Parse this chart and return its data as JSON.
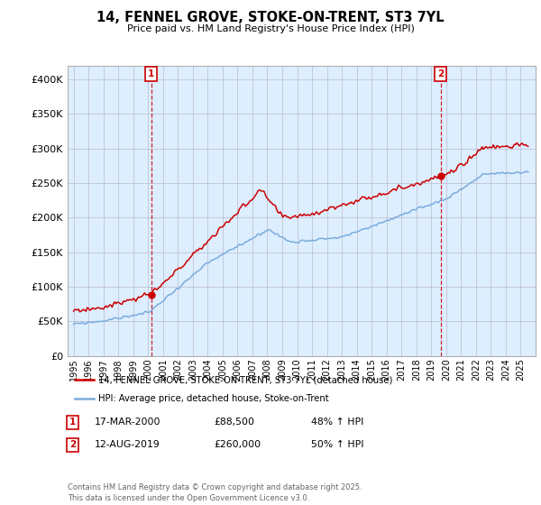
{
  "title": "14, FENNEL GROVE, STOKE-ON-TRENT, ST3 7YL",
  "subtitle": "Price paid vs. HM Land Registry's House Price Index (HPI)",
  "legend_label_red": "14, FENNEL GROVE, STOKE-ON-TRENT, ST3 7YL (detached house)",
  "legend_label_blue": "HPI: Average price, detached house, Stoke-on-Trent",
  "annotation1_date": "17-MAR-2000",
  "annotation1_price": "£88,500",
  "annotation1_hpi": "48% ↑ HPI",
  "annotation2_date": "12-AUG-2019",
  "annotation2_price": "£260,000",
  "annotation2_hpi": "50% ↑ HPI",
  "footer": "Contains HM Land Registry data © Crown copyright and database right 2025.\nThis data is licensed under the Open Government Licence v3.0.",
  "red_color": "#cc0000",
  "blue_color": "#7aacdc",
  "bg_plot_color": "#ddeeff",
  "ylim_min": 0,
  "ylim_max": 420000,
  "yticks": [
    0,
    50000,
    100000,
    150000,
    200000,
    250000,
    300000,
    350000,
    400000
  ],
  "purchase1_year": 2000.21,
  "purchase1_value": 88500,
  "purchase2_year": 2019.62,
  "purchase2_value": 260000,
  "bg_color": "#ffffff",
  "grid_color": "#bbbbcc"
}
